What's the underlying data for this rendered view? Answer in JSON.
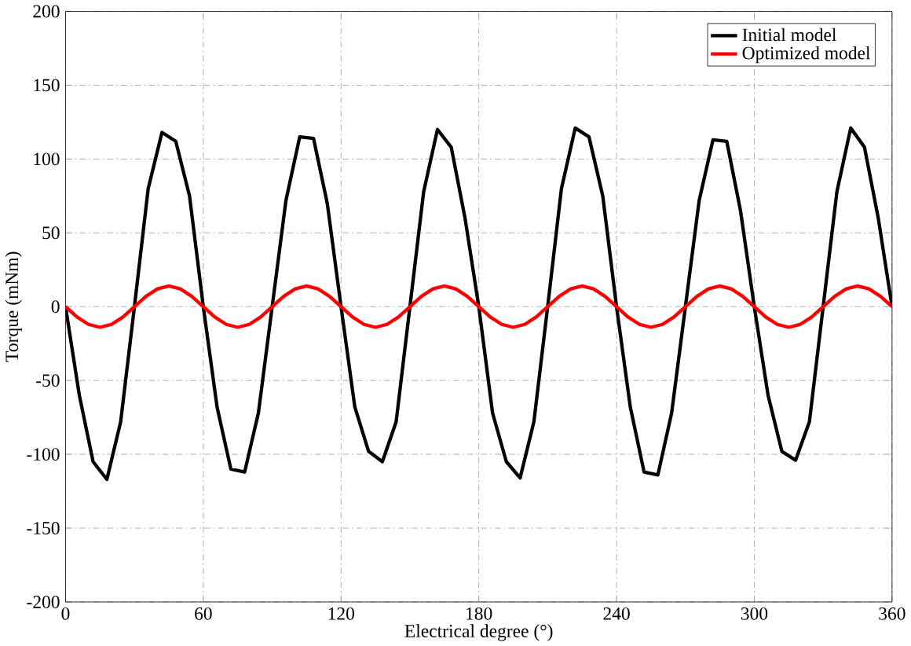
{
  "chart_data": {
    "type": "line",
    "xlabel": "Electrical degree (°)",
    "ylabel": "Torque (mNm)",
    "xlim": [
      0,
      360
    ],
    "ylim": [
      -200,
      200
    ],
    "xticks": [
      0,
      60,
      120,
      180,
      240,
      300,
      360
    ],
    "yticks": [
      -200,
      -150,
      -100,
      -50,
      0,
      50,
      100,
      150,
      200
    ],
    "grid": true,
    "legend": "top right",
    "line_style": "solid",
    "marker": "none",
    "series": [
      {
        "name": "Initial model",
        "color": "#000000",
        "x": [
          0,
          6,
          12,
          18,
          24,
          30,
          36,
          42,
          48,
          54,
          60,
          66,
          72,
          78,
          84,
          90,
          96,
          102,
          108,
          114,
          120,
          126,
          132,
          138,
          144,
          150,
          156,
          162,
          168,
          174,
          180,
          186,
          192,
          198,
          204,
          210,
          216,
          222,
          228,
          234,
          240,
          246,
          252,
          258,
          264,
          270,
          276,
          282,
          288,
          294,
          300,
          306,
          312,
          318,
          324,
          330,
          336,
          342,
          348,
          354,
          360
        ],
        "values": [
          0,
          -60,
          -105,
          -117,
          -78,
          0,
          80,
          118,
          112,
          75,
          0,
          -68,
          -110,
          -112,
          -72,
          0,
          72,
          115,
          114,
          70,
          0,
          -68,
          -98,
          -105,
          -78,
          0,
          78,
          120,
          108,
          60,
          0,
          -72,
          -105,
          -116,
          -78,
          0,
          80,
          121,
          115,
          75,
          0,
          -68,
          -112,
          -114,
          -72,
          0,
          72,
          113,
          112,
          65,
          0,
          -60,
          -98,
          -104,
          -78,
          0,
          78,
          121,
          108,
          60,
          0
        ]
      },
      {
        "name": "Optimized model",
        "color": "#ff0000",
        "x": [
          0,
          5,
          10,
          15,
          20,
          25,
          30,
          35,
          40,
          45,
          50,
          55,
          60,
          65,
          70,
          75,
          80,
          85,
          90,
          95,
          100,
          105,
          110,
          115,
          120,
          125,
          130,
          135,
          140,
          145,
          150,
          155,
          160,
          165,
          170,
          175,
          180,
          185,
          190,
          195,
          200,
          205,
          210,
          215,
          220,
          225,
          230,
          235,
          240,
          245,
          250,
          255,
          260,
          265,
          270,
          275,
          280,
          285,
          290,
          295,
          300,
          305,
          310,
          315,
          320,
          325,
          330,
          335,
          340,
          345,
          350,
          355,
          360
        ],
        "values": [
          0,
          -7,
          -12,
          -14,
          -12,
          -7,
          0,
          7,
          12,
          14,
          12,
          7,
          0,
          -7,
          -12,
          -14,
          -12,
          -7,
          0,
          7,
          12,
          14,
          12,
          7,
          0,
          -7,
          -12,
          -14,
          -12,
          -7,
          0,
          7,
          12,
          14,
          12,
          7,
          0,
          -7,
          -12,
          -14,
          -12,
          -7,
          0,
          7,
          12,
          14,
          12,
          7,
          0,
          -7,
          -12,
          -14,
          -12,
          -7,
          0,
          7,
          12,
          14,
          12,
          7,
          0,
          -7,
          -12,
          -14,
          -12,
          -7,
          0,
          7,
          12,
          14,
          12,
          7,
          0
        ]
      }
    ]
  }
}
